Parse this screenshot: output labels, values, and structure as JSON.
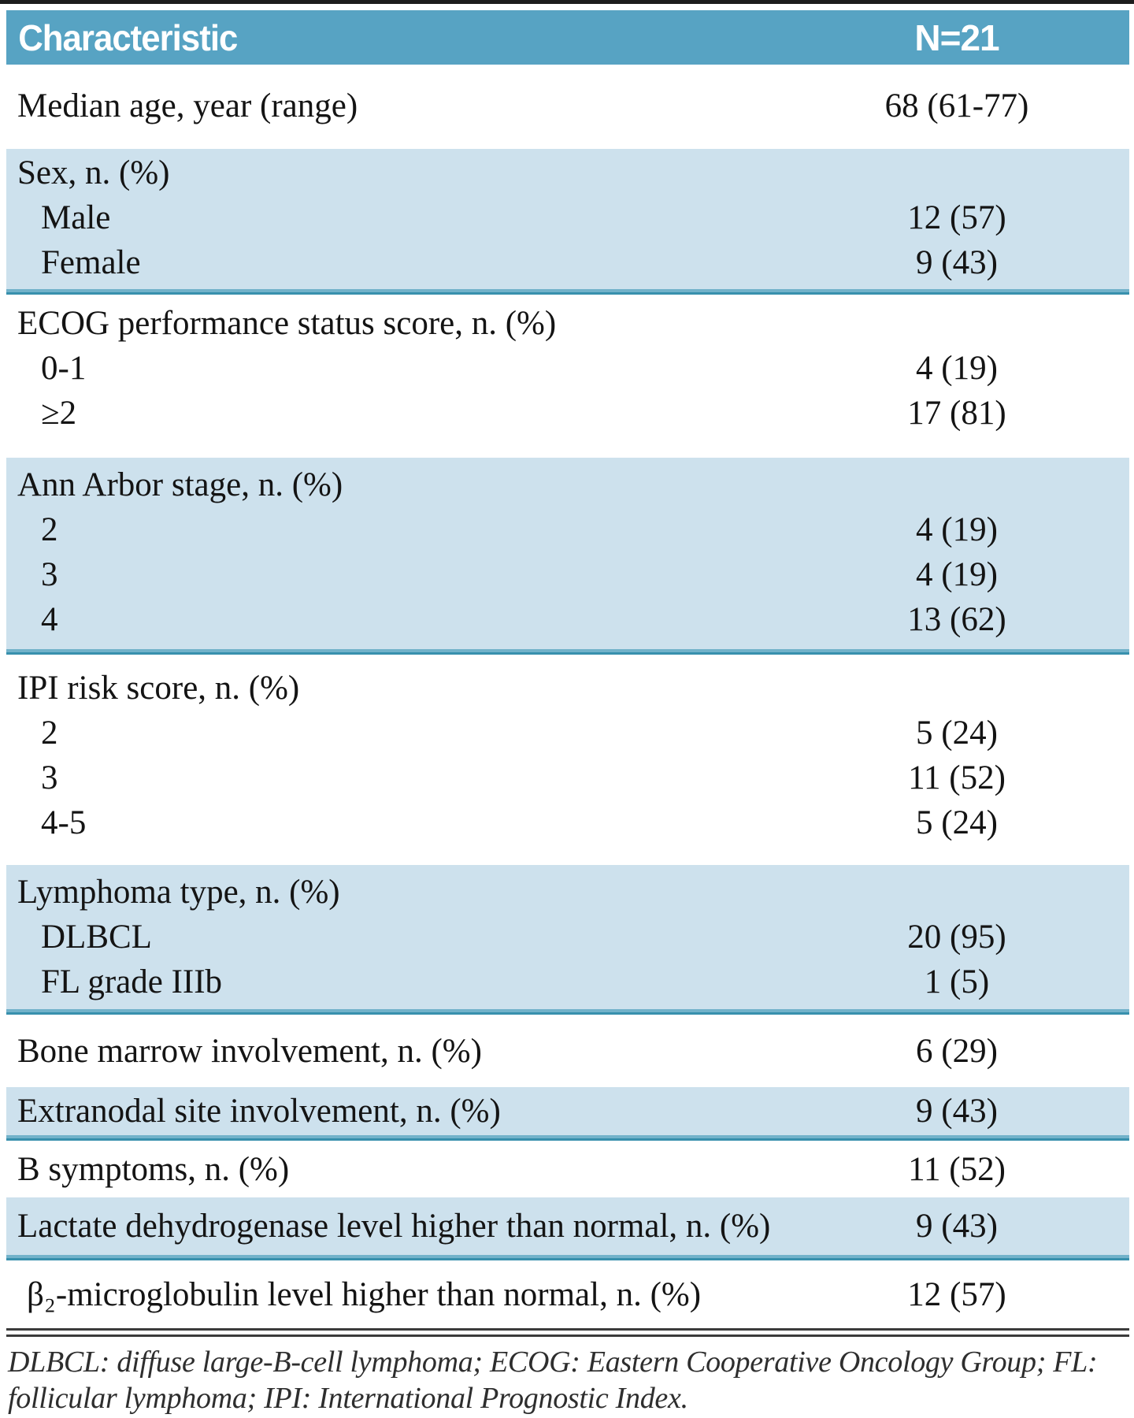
{
  "table": {
    "header": {
      "characteristic": "Characteristic",
      "n": "N=21"
    },
    "sections": [
      {
        "rows": [
          {
            "label": "Median age, year (range)",
            "value": "68 (61-77)",
            "indent": 0
          }
        ]
      },
      {
        "rows": [
          {
            "label": "Sex, n. (%)",
            "value": "",
            "indent": 0
          },
          {
            "label": "Male",
            "value": "12 (57)",
            "indent": 1
          },
          {
            "label": "Female",
            "value": "9 (43)",
            "indent": 1
          }
        ]
      },
      {
        "rows": [
          {
            "label": "ECOG performance status score, n. (%)",
            "value": "",
            "indent": 0
          },
          {
            "label": "0-1",
            "value": "4 (19)",
            "indent": 1
          },
          {
            "label": "≥2",
            "value": "17 (81)",
            "indent": 1
          }
        ]
      },
      {
        "rows": [
          {
            "label": "Ann Arbor stage, n. (%)",
            "value": "",
            "indent": 0
          },
          {
            "label": "2",
            "value": "4 (19)",
            "indent": 1
          },
          {
            "label": "3",
            "value": "4 (19)",
            "indent": 1
          },
          {
            "label": "4",
            "value": "13 (62)",
            "indent": 1
          }
        ]
      },
      {
        "rows": [
          {
            "label": "IPI risk score, n. (%)",
            "value": "",
            "indent": 0
          },
          {
            "label": "2",
            "value": "5 (24)",
            "indent": 1
          },
          {
            "label": "3",
            "value": "11 (52)",
            "indent": 1
          },
          {
            "label": "4-5",
            "value": "5 (24)",
            "indent": 1
          }
        ]
      },
      {
        "rows": [
          {
            "label": "Lymphoma type, n. (%)",
            "value": "",
            "indent": 0
          },
          {
            "label": "DLBCL",
            "value": "20 (95)",
            "indent": 1
          },
          {
            "label": "FL grade IIIb",
            "value": "1 (5)",
            "indent": 1
          }
        ]
      },
      {
        "rows": [
          {
            "label": "Bone marrow involvement, n. (%)",
            "value": "6 (29)",
            "indent": 0
          }
        ]
      },
      {
        "rows": [
          {
            "label": "Extranodal site involvement, n. (%)",
            "value": "9 (43)",
            "indent": 0
          }
        ]
      },
      {
        "rows": [
          {
            "label": "B symptoms, n. (%)",
            "value": "11 (52)",
            "indent": 0
          }
        ]
      },
      {
        "rows": [
          {
            "label": "Lactate dehydrogenase level higher than normal, n. (%)",
            "value": "9 (43)",
            "indent": 0
          }
        ]
      },
      {
        "rows": [
          {
            "label": "β₂-microglobulin level higher than normal, n. (%)",
            "value": "12 (57)",
            "indent": 2
          }
        ]
      }
    ],
    "footnote_lines": [
      "DLBCL: diffuse large-B-cell lymphoma; ECOG: Eastern Cooperative Oncology Group; FL:",
      "follicular lymphoma; IPI: International Prognostic Index."
    ]
  },
  "colors": {
    "header_bg": "#57a3c3",
    "row_blue_bg": "#cde1ed",
    "separator_teal": "#3890ad",
    "top_rule": "#1c1c1c",
    "text": "#141414"
  }
}
